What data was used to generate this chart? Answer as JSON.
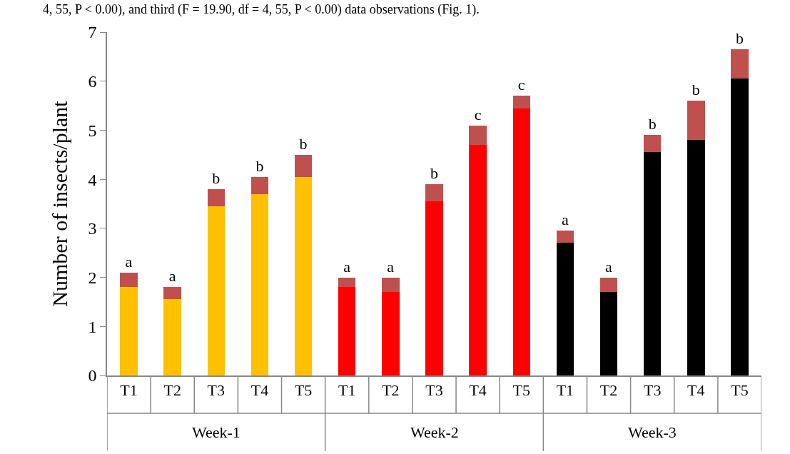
{
  "chart_data": {
    "type": "bar",
    "stacked": true,
    "ylabel": "Number of insects/plant",
    "categories": [
      "T1",
      "T2",
      "T3",
      "T4",
      "T5",
      "T1",
      "T2",
      "T3",
      "T4",
      "T5",
      "T1",
      "T2",
      "T3",
      "T4",
      "T5"
    ],
    "series": [
      {
        "colors": [
          "#ffc000",
          "#ffc000",
          "#ffc000",
          "#ffc000",
          "#ffc000",
          "#ff0000",
          "#ff0000",
          "#ff0000",
          "#ff0000",
          "#ff0000",
          "#000000",
          "#000000",
          "#000000",
          "#000000",
          "#000000"
        ],
        "values": [
          1.8,
          1.55,
          3.45,
          3.7,
          4.05,
          1.8,
          1.7,
          3.55,
          4.7,
          5.45,
          2.7,
          1.7,
          4.55,
          4.8,
          6.05
        ]
      },
      {
        "color": "#c0504d",
        "values": [
          0.3,
          0.25,
          0.35,
          0.35,
          0.45,
          0.2,
          0.3,
          0.35,
          0.4,
          0.25,
          0.25,
          0.3,
          0.35,
          0.8,
          0.6
        ],
        "value_labels": [
          "a",
          "a",
          "b",
          "b",
          "b",
          "a",
          "a",
          "b",
          "c",
          "c",
          "a",
          "a",
          "b",
          "b",
          "b"
        ]
      }
    ],
    "ylim": [
      0,
      7
    ],
    "yticks": [
      0,
      1,
      2,
      3,
      4,
      5,
      6,
      7
    ],
    "grid": false,
    "annotations": [
      "4, 55, P < 0.00), and third (F = 19.90, df = 4, 55, P < 0.00) data observations (Fig. 1).",
      "Week-1",
      "Week-2",
      "Week-3"
    ]
  }
}
